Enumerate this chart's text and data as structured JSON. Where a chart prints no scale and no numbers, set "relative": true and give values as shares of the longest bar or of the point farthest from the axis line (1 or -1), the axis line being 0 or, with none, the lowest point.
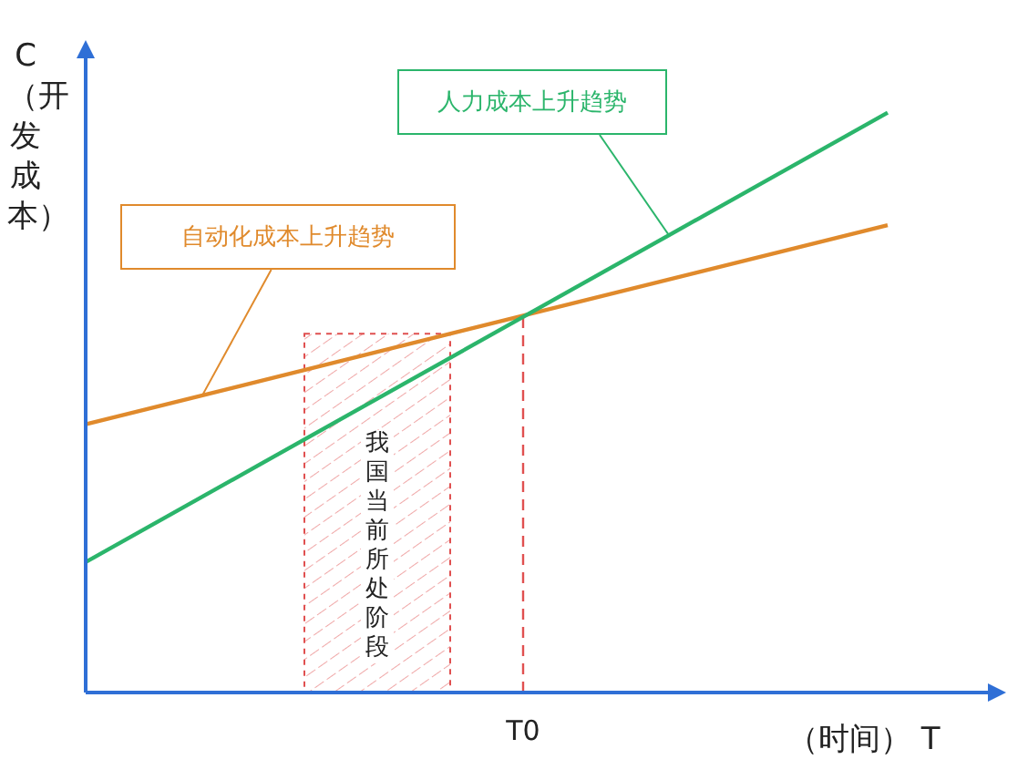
{
  "chart_data": {
    "type": "line",
    "relative": true,
    "ylabel": "C（开发成本）",
    "xlabel": "（时间） T",
    "categories": [
      null,
      null,
      null,
      null,
      null,
      null,
      null,
      null,
      null,
      null,
      null,
      null,
      null
    ],
    "annotations": [
      "我国当前所处阶段",
      "T0"
    ],
    "grid": false,
    "legend": false,
    "marker": "none",
    "line_style": "solid",
    "series": [
      {
        "name": "自动化成本上升趋势",
        "color": "#e08a2c",
        "values": [
          0.4625,
          null,
          null,
          null,
          null,
          null,
          null,
          null,
          null,
          null,
          null,
          0.806,
          null
        ]
      },
      {
        "name": "人力成本上升趋势",
        "color": "#2bb56b",
        "values": [
          0.225,
          null,
          null,
          null,
          null,
          null,
          null,
          null,
          null,
          null,
          null,
          1,
          null
        ]
      }
    ]
  }
}
